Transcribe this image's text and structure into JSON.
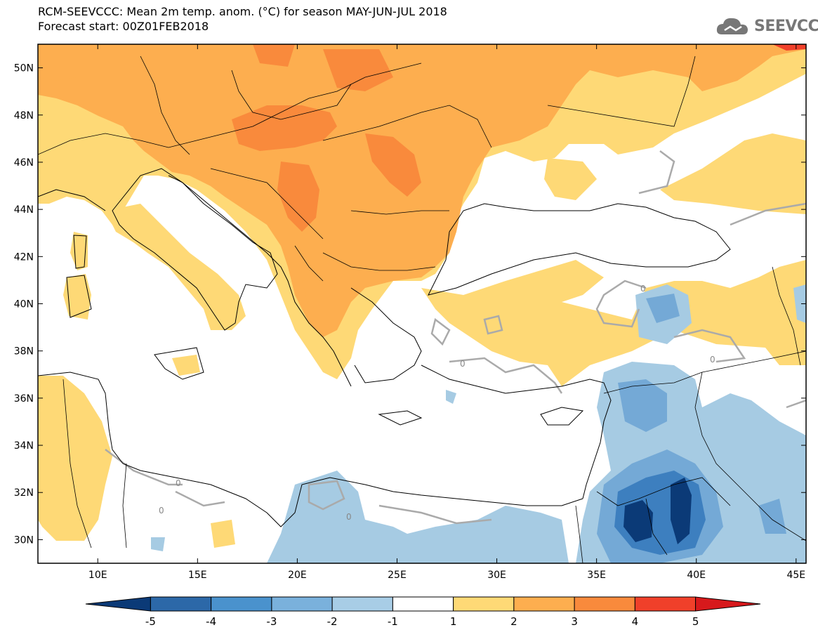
{
  "title": {
    "line1": "RCM-SEEVCCC: Mean 2m temp. anom. (°C) for season MAY-JUN-JUL 2018",
    "line2": "Forecast start: 00Z01FEB2018"
  },
  "logo": {
    "text": "SEEVCCC",
    "icon": "cloud-icon"
  },
  "map": {
    "type": "filled-contour-map",
    "variable": "Mean 2m temperature anomaly",
    "units": "°C",
    "season": "MAY-JUN-JUL 2018",
    "lon_range": [
      7,
      45.5
    ],
    "lat_range": [
      29,
      51
    ],
    "lat_ticks": [
      {
        "v": 30,
        "label": "30N"
      },
      {
        "v": 32,
        "label": "32N"
      },
      {
        "v": 34,
        "label": "34N"
      },
      {
        "v": 36,
        "label": "36N"
      },
      {
        "v": 38,
        "label": "38N"
      },
      {
        "v": 40,
        "label": "40N"
      },
      {
        "v": 42,
        "label": "42N"
      },
      {
        "v": 44,
        "label": "44N"
      },
      {
        "v": 46,
        "label": "46N"
      },
      {
        "v": 48,
        "label": "48N"
      },
      {
        "v": 50,
        "label": "50N"
      }
    ],
    "lon_ticks": [
      {
        "v": 10,
        "label": "10E"
      },
      {
        "v": 15,
        "label": "15E"
      },
      {
        "v": 20,
        "label": "20E"
      },
      {
        "v": 25,
        "label": "25E"
      },
      {
        "v": 30,
        "label": "30E"
      },
      {
        "v": 35,
        "label": "35E"
      },
      {
        "v": 40,
        "label": "40E"
      },
      {
        "v": 45,
        "label": "45E"
      }
    ],
    "zero_contour_label": "0",
    "colors": {
      "0_1": "#ffffff",
      "1_2": "#fed976",
      "2_3": "#fdae4f",
      "3_4": "#f98a3c",
      "4_5": "#f0402a",
      "neg1_neg2": "#a6cbe3",
      "neg2_neg3": "#74a9d6",
      "neg3_neg4": "#3d7fbf",
      "neg4_neg5": "#0b3a77",
      "contour": "#aaaaaa",
      "land": "#000000"
    }
  },
  "colorbar": {
    "levels": [
      "-5",
      "-4",
      "-3",
      "-2",
      "-1",
      "1",
      "2",
      "3",
      "4",
      "5"
    ],
    "colors": [
      "#0b3a77",
      "#2c68a8",
      "#4a92cd",
      "#7ab1dc",
      "#a8cde6",
      "#ffffff",
      "#fed976",
      "#fdae4f",
      "#f98a3c",
      "#f0402a",
      "#d7191c"
    ]
  }
}
